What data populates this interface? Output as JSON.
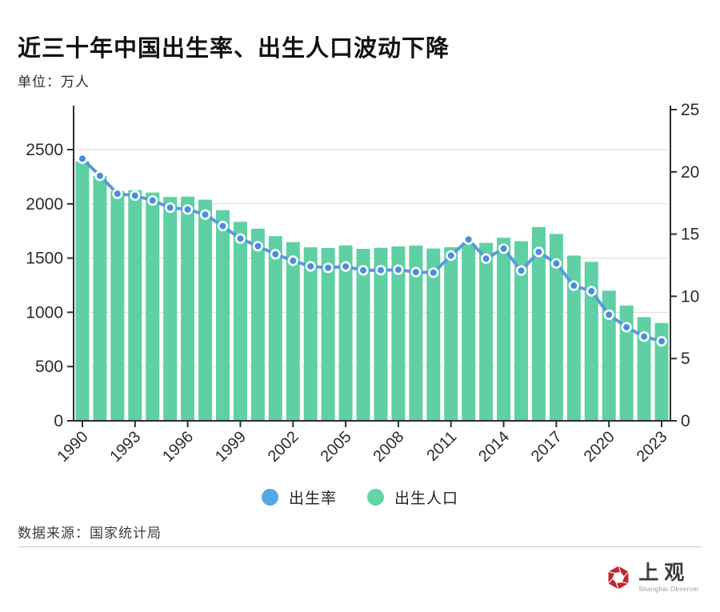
{
  "header": {
    "title": "近三十年中国出生率、出生人口波动下降",
    "unit_label": "单位：万人"
  },
  "chart_data": {
    "type": "bar+line combo",
    "title": "近三十年中国出生率、出生人口波动下降",
    "unit_label": "单位：万人",
    "x": [
      1990,
      1991,
      1992,
      1993,
      1994,
      1995,
      1996,
      1997,
      1998,
      1999,
      2000,
      2001,
      2002,
      2003,
      2004,
      2005,
      2006,
      2007,
      2008,
      2009,
      2010,
      2011,
      2012,
      2013,
      2014,
      2015,
      2016,
      2017,
      2018,
      2019,
      2020,
      2021,
      2022,
      2023
    ],
    "series": [
      {
        "name": "出生率",
        "type": "line",
        "axis": "right",
        "color": "#5B9AD8",
        "marker_fill": "#478FD8",
        "marker_stroke": "#ffffff",
        "legend_color": "#55A8E6",
        "values": [
          21.06,
          19.68,
          18.24,
          18.09,
          17.7,
          17.12,
          16.98,
          16.57,
          15.64,
          14.64,
          14.03,
          13.38,
          12.86,
          12.41,
          12.29,
          12.4,
          12.09,
          12.1,
          12.14,
          11.95,
          11.9,
          13.27,
          14.57,
          13.03,
          13.83,
          12.07,
          13.57,
          12.64,
          10.86,
          10.41,
          8.52,
          7.52,
          6.77,
          6.39
        ]
      },
      {
        "name": "出生人口",
        "type": "bar",
        "axis": "left",
        "color": "#5FD0A4",
        "legend_color": "#63D6A8",
        "values": [
          2391,
          2258,
          2119,
          2126,
          2104,
          2063,
          2067,
          2038,
          1942,
          1834,
          1771,
          1702,
          1647,
          1599,
          1593,
          1617,
          1585,
          1595,
          1608,
          1615,
          1588,
          1600,
          1635,
          1640,
          1687,
          1655,
          1786,
          1723,
          1523,
          1465,
          1200,
          1062,
          956,
          902
        ]
      }
    ],
    "ylim_left": [
      0,
      2500
    ],
    "yticks_left": [
      0,
      500,
      1000,
      1500,
      2000,
      2500
    ],
    "ylim_right": [
      0,
      25
    ],
    "yticks_right": [
      0,
      5,
      10,
      15,
      20,
      25
    ],
    "xticks": [
      1990,
      1993,
      1996,
      1999,
      2002,
      2005,
      2008,
      2011,
      2014,
      2017,
      2020,
      2023
    ],
    "grid": "horizontal gridlines on left-axis ticks only",
    "legend_position": "bottom-center"
  },
  "footer": {
    "source": "数据来源：国家统计局"
  },
  "branding": {
    "logo_text": "上观",
    "logo_subtext": "Shanghai Observer",
    "logo_color": "#C1272D"
  },
  "colors": {
    "background": "#ffffff",
    "axis": "#2f2f2f",
    "grid": "#dcdcdc",
    "tick_text": "#2b2b2b",
    "divider": "#cccccc"
  }
}
